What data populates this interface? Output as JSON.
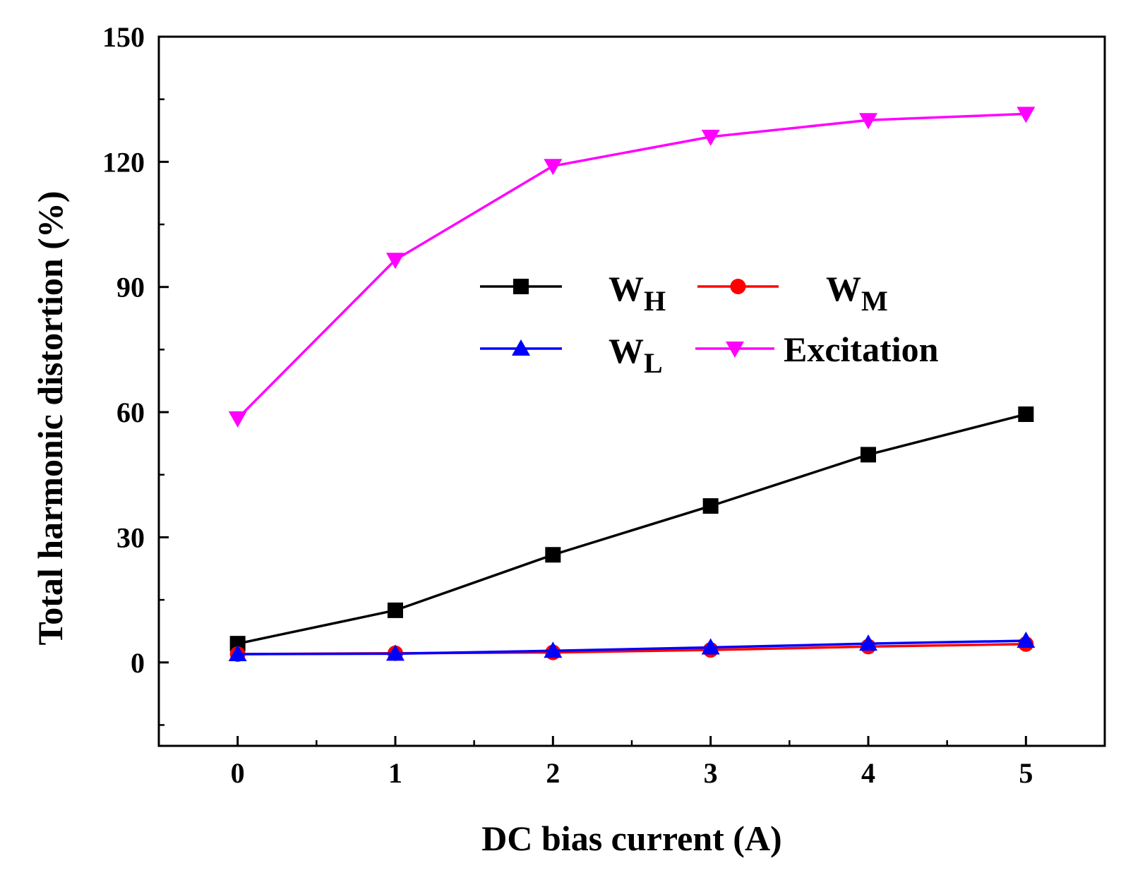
{
  "chart_data": {
    "type": "line",
    "title": "",
    "xlabel": "DC bias current (A)",
    "ylabel": "Total harmonic distortion (%)",
    "xlim": [
      -0.5,
      5.5
    ],
    "ylim": [
      -20,
      150
    ],
    "x": [
      0,
      1,
      2,
      3,
      4,
      5
    ],
    "xticks": [
      "0",
      "1",
      "2",
      "3",
      "4",
      "5"
    ],
    "yticks": [
      "0",
      "30",
      "60",
      "90",
      "120",
      "150"
    ],
    "yticks_values": [
      0,
      30,
      60,
      90,
      120,
      150
    ],
    "grid": false,
    "legend_position": "center-right",
    "series": [
      {
        "name": "WH",
        "main": "W",
        "sub": "H",
        "color": "#000000",
        "marker": "square",
        "values": [
          4.5,
          12.5,
          25.8,
          37.5,
          49.8,
          59.5
        ]
      },
      {
        "name": "WM",
        "main": "W",
        "sub": "M",
        "color": "#ff0000",
        "marker": "circle",
        "values": [
          2.0,
          2.2,
          2.4,
          3.0,
          3.8,
          4.4
        ]
      },
      {
        "name": "WL",
        "main": "W",
        "sub": "L",
        "color": "#0000ff",
        "marker": "triangle-up",
        "values": [
          2.0,
          2.1,
          2.8,
          3.6,
          4.5,
          5.2
        ]
      },
      {
        "name": "Excitation",
        "main": "Excitation",
        "sub": "",
        "color": "#ff00ff",
        "marker": "triangle-down",
        "values": [
          58.5,
          96.5,
          119.0,
          126.0,
          130.0,
          131.5
        ]
      }
    ]
  }
}
